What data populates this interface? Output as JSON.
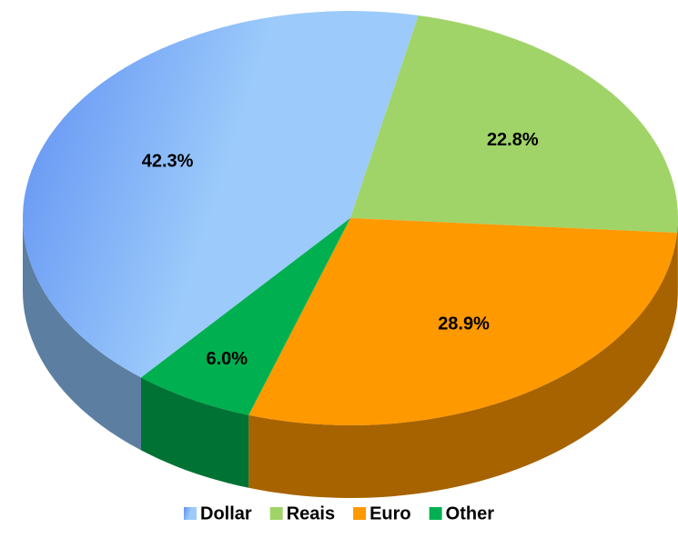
{
  "chart_data": {
    "type": "pie",
    "categories": [
      "Dollar",
      "Reais",
      "Euro",
      "Other"
    ],
    "values": [
      42.3,
      22.8,
      28.9,
      6.0
    ],
    "value_labels": [
      "42.3%",
      "22.8%",
      "28.9%",
      "6.0%"
    ],
    "colors": [
      "#8ec4f8",
      "#a0d468",
      "#ff9900",
      "#00b050"
    ],
    "legend": "bottom"
  }
}
